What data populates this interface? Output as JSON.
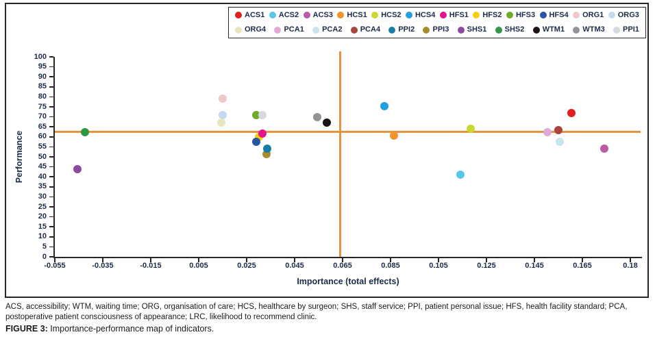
{
  "figure": {
    "abbreviations": "ACS, accessibility; WTM, waiting time; ORG, organisation of care; HCS, healthcare by surgeon; SHS, staff service; PPI, patient personal issue; HFS, health facility standard; PCA, postoperative patient consciousness of appearance; LRC, likelihood to recommend clinic.",
    "caption_label": "FIGURE 3:",
    "caption_text": " Importance-performance map of indicators."
  },
  "chart_data": {
    "type": "scatter",
    "title": "",
    "xlabel": "Importance (total effects)",
    "ylabel": "Performance",
    "xlim": [
      -0.055,
      0.18
    ],
    "ylim": [
      0,
      100
    ],
    "grid": false,
    "legend_position": "top",
    "x_tick_labels": [
      "-0.055",
      "-0.035",
      "-0.015",
      "0.005",
      "0.025",
      "0.045",
      "0.065",
      "0.085",
      "0.105",
      "0.125",
      "0.145",
      "0.165",
      "0.18"
    ],
    "y_ticks": [
      0,
      5,
      10,
      15,
      20,
      25,
      30,
      35,
      40,
      45,
      50,
      55,
      60,
      65,
      70,
      75,
      80,
      85,
      90,
      95,
      100
    ],
    "reference_lines": {
      "horizontal_y": 62.5,
      "vertical_x": 0.064,
      "color": "#E8923C"
    },
    "series": [
      {
        "name": "ORG1",
        "color": "#F1C7CB",
        "x": 0.015,
        "y": 79
      },
      {
        "name": "ORG3",
        "color": "#C4D9EE",
        "x": 0.015,
        "y": 71
      },
      {
        "name": "ORG4",
        "color": "#E6E6BE",
        "x": 0.0145,
        "y": 67
      },
      {
        "name": "HFS3",
        "color": "#70AA28",
        "x": 0.029,
        "y": 71
      },
      {
        "name": "PPI1",
        "color": "#D7D7DE",
        "x": 0.0315,
        "y": 71
      },
      {
        "name": "HFS2",
        "color": "#F8CE0F",
        "x": 0.03,
        "y": 60
      },
      {
        "name": "HFS1",
        "color": "#E6148C",
        "x": 0.0315,
        "y": 61.5
      },
      {
        "name": "HFS4",
        "color": "#2A55A3",
        "x": 0.029,
        "y": 57.5
      },
      {
        "name": "PPI3",
        "color": "#A98C2F",
        "x": 0.0333,
        "y": 51.5
      },
      {
        "name": "PPI2",
        "color": "#1A7DA8",
        "x": 0.0335,
        "y": 54
      },
      {
        "name": "SHS1",
        "color": "#8D4A9E",
        "x": -0.0455,
        "y": 44
      },
      {
        "name": "SHS2",
        "color": "#2F9745",
        "x": -0.0425,
        "y": 62.5
      },
      {
        "name": "WTM3",
        "color": "#949297",
        "x": 0.0545,
        "y": 70
      },
      {
        "name": "WTM1",
        "color": "#1A1215",
        "x": 0.0585,
        "y": 67
      },
      {
        "name": "HCS4",
        "color": "#23A0DB",
        "x": 0.0825,
        "y": 75.5
      },
      {
        "name": "HCS1",
        "color": "#F0942B",
        "x": 0.0865,
        "y": 60.5
      },
      {
        "name": "HCS2",
        "color": "#CBD62E",
        "x": 0.1185,
        "y": 64
      },
      {
        "name": "ACS2",
        "color": "#5BC5EA",
        "x": 0.114,
        "y": 41
      },
      {
        "name": "PCA1",
        "color": "#E0A9D6",
        "x": 0.1505,
        "y": 62.5
      },
      {
        "name": "PCA2",
        "color": "#C9E5EC",
        "x": 0.1555,
        "y": 57.5
      },
      {
        "name": "PCA4",
        "color": "#A9453F",
        "x": 0.155,
        "y": 63.5
      },
      {
        "name": "ACS1",
        "color": "#E0201F",
        "x": 0.1605,
        "y": 72
      },
      {
        "name": "ACS3",
        "color": "#B85CA6",
        "x": 0.174,
        "y": 54
      }
    ]
  },
  "legend": {
    "rows": [
      [
        "ACS1",
        "ACS2",
        "ACS3",
        "HCS1",
        "HCS2",
        "HCS4",
        "HFS1",
        "HFS2",
        "HFS3",
        "HFS4",
        "ORG1",
        "ORG3"
      ],
      [
        "ORG4",
        "PCA1",
        "PCA2",
        "PCA4",
        "PPI2",
        "PPI3",
        "SHS1",
        "SHS2",
        "WTM1",
        "WTM3",
        "PPI1"
      ]
    ]
  }
}
